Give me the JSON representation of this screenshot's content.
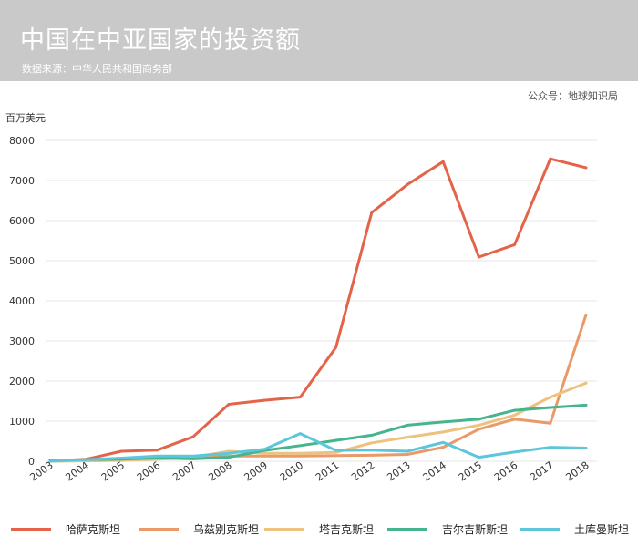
{
  "header": {
    "title": "中国在中亚国家的投资额",
    "subtitle": "数据来源：中华人民共和国商务部"
  },
  "source_note": "公众号：地球知识局",
  "colors": {
    "header_bg": "#c9c9c9",
    "grid": "#e6e6e6"
  },
  "chart_data": {
    "type": "line",
    "title": "中国在中亚国家的投资额",
    "subtitle": "数据来源：中华人民共和国商务部",
    "ylabel": "百万美元",
    "xlabel": "",
    "ylim": [
      0,
      8000
    ],
    "yticks": [
      0,
      1000,
      2000,
      3000,
      4000,
      5000,
      6000,
      7000,
      8000
    ],
    "grid": true,
    "legend_position": "bottom",
    "x": [
      "2003",
      "2004",
      "2005",
      "2006",
      "2007",
      "2008",
      "2009",
      "2010",
      "2011",
      "2012",
      "2013",
      "2014",
      "2015",
      "2016",
      "2017",
      "2018"
    ],
    "series": [
      {
        "name": "哈萨克斯坦",
        "color": "#e4644a",
        "values": [
          0,
          50,
          250,
          280,
          610,
          1420,
          1520,
          1600,
          2840,
          6200,
          6900,
          7470,
          5090,
          5400,
          7540,
          7320
        ]
      },
      {
        "name": "乌兹别克斯坦",
        "color": "#e99a68",
        "values": [
          10,
          20,
          30,
          60,
          100,
          130,
          130,
          130,
          140,
          150,
          170,
          350,
          800,
          1050,
          950,
          3650
        ]
      },
      {
        "name": "塔吉克斯坦",
        "color": "#ecc27e",
        "values": [
          0,
          10,
          20,
          50,
          100,
          250,
          200,
          200,
          220,
          460,
          600,
          730,
          900,
          1150,
          1600,
          1950
        ]
      },
      {
        "name": "吉尔吉斯斯坦",
        "color": "#46b48d",
        "values": [
          30,
          40,
          50,
          80,
          60,
          100,
          270,
          390,
          520,
          650,
          900,
          980,
          1050,
          1270,
          1340,
          1400
        ]
      },
      {
        "name": "土库曼斯坦",
        "color": "#5ec6dc",
        "values": [
          0,
          40,
          80,
          130,
          130,
          200,
          300,
          690,
          270,
          280,
          250,
          470,
          100,
          230,
          350,
          330
        ]
      }
    ]
  }
}
